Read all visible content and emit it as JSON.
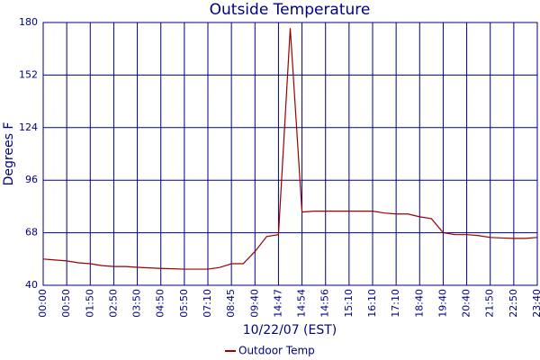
{
  "chart_data": {
    "type": "line",
    "title": "Outside Temperature",
    "x_label": "10/22/07 (EST)",
    "y_label": "Degrees F",
    "categories": [
      "00:00",
      null,
      "00:50",
      null,
      "01:50",
      null,
      "02:50",
      null,
      "03:50",
      null,
      "04:50",
      null,
      "05:50",
      null,
      "07:10",
      null,
      "08:45",
      null,
      "09:40",
      null,
      "14:47",
      null,
      "14:54",
      null,
      "14:56",
      null,
      "15:10",
      null,
      "16:10",
      null,
      "17:10",
      null,
      "18:40",
      null,
      "19:40",
      null,
      "20:40",
      null,
      "21:50",
      null,
      "22:50",
      null,
      "23:40"
    ],
    "series": [
      {
        "name": "Outdoor Temp",
        "color": "#990000",
        "values": [
          54,
          53.5,
          53,
          52,
          51.5,
          50.5,
          50,
          50,
          49.6,
          49.3,
          49,
          48.8,
          48.6,
          48.6,
          48.6,
          49.5,
          51.5,
          51.5,
          58,
          66,
          67,
          177,
          79,
          79.5,
          79.5,
          79.5,
          79.5,
          79.5,
          79.5,
          78.5,
          78,
          78,
          76.5,
          75.5,
          68,
          67,
          67,
          66.5,
          65.5,
          65.2,
          65,
          65,
          65.5
        ]
      }
    ],
    "ylim": [
      40,
      180
    ],
    "yticks": [
      40,
      68,
      96,
      124,
      152,
      180
    ],
    "grid": true,
    "legend": "bottom"
  }
}
